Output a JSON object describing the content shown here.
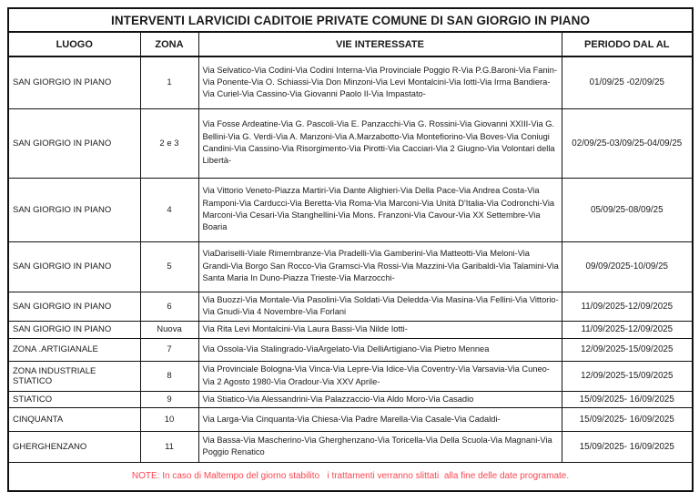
{
  "document": {
    "title": "INTERVENTI LARVICIDI CADITOIE PRIVATE COMUNE DI SAN GIORGIO IN PIANO",
    "note": "NOTE: In caso di Maltempo del giorno stabilito   i trattamenti verranno slittati  alla fine delle date programate.",
    "note_color": "#fa4550",
    "border_color": "#111111",
    "text_color": "#1a1a1a"
  },
  "table": {
    "headers": [
      "LUOGO",
      "ZONA",
      "VIE INTERESSATE",
      "PERIODO DAL AL"
    ],
    "rows": [
      {
        "luogo": "SAN GIORGIO IN PIANO",
        "zona": "1",
        "vie": "Via Selvatico-Via Codini-Via Codini Interna-Via Provinciale Poggio R-Via P.G.Baroni-Via Fanin-Via Ponente-Via O. Schiassi-Via Don Minzoni-Via Levi Montalcini-Via Iotti-Via Irma Bandiera-Via Curiel-Via Cassino-Via Giovanni Paolo II-Via Impastato-",
        "periodo": "01/09/25 -02/09/25"
      },
      {
        "luogo": "SAN GIORGIO IN PIANO",
        "zona": "2 e 3",
        "vie": "Via Fosse Ardeatine-Via G. Pascoli-Via E. Panzacchi-Via G. Rossini-Via Giovanni XXIII-Via G. Bellini-Via G. Verdi-Via A. Manzoni-Via A.Marzabotto-Via Montefiorino-Via Boves-Via Coniugi Candini-Via Cassino-Via Risorgimento-Via Pirotti-Via Cacciari-Via 2 Giugno-Via Volontari della Libertà-",
        "periodo": "02/09/25-03/09/25-04/09/25"
      },
      {
        "luogo": "SAN GIORGIO IN PIANO",
        "zona": "4",
        "vie": "Via Vittorio Veneto-Piazza Martiri-Via Dante Alighieri-Via Della Pace-Via Andrea Costa-Via Ramponi-Via Carducci-Via Beretta-Via Roma-Via Marconi-Via Unità D'Italia-Via Codronchi-Via Marconi-Via Cesari-Via Stanghellini-Via Mons. Franzoni-Via Cavour-Via XX Settembre-Via Boaria",
        "periodo": "05/09/25-08/09/25"
      },
      {
        "luogo": "SAN GIORGIO IN PIANO",
        "zona": "5",
        "vie": "ViaDariselli-Viale Rimembranze-Via Pradelli-Via Gamberini-Via Matteotti-Via Meloni-Via Grandi-Via Borgo San Rocco-Via Gramsci-Via Rossi-Via Mazzini-Via Garibaldi-Via Talamini-Via Santa Maria In Duno-Piazza Trieste-Via Marzocchi-",
        "periodo": "09/09/2025-10/09/25"
      },
      {
        "luogo": "SAN GIORGIO IN PIANO",
        "zona": "6",
        "vie": "Via Buozzi-Via Montale-Via Pasolini-Via Soldati-Via Deledda-Via Masina-Via Fellini-Via Vittorio-Via Gnudi-Via 4 Novembre-Via Forlani",
        "periodo": "11/09/2025-12/09/2025"
      },
      {
        "luogo": "SAN GIORGIO IN PIANO",
        "zona": "Nuova",
        "vie": "Via Rita Levi Montalcini-Via Laura Bassi-Via Nilde Iotti-",
        "periodo": "11/09/2025-12/09/2025"
      },
      {
        "luogo": "ZONA .ARTIGIANALE",
        "zona": "7",
        "vie": "Via Ossola-Via Stalingrado-ViaArgelato-Via DelliArtigiano-Via Pietro Mennea",
        "periodo": "12/09/2025-15/09/2025"
      },
      {
        "luogo": "ZONA INDUSTRIALE STIATICO",
        "zona": "8",
        "vie": "Via Provinciale Bologna-Via Vinca-Via Lepre-Via Idice-Via Coventry-Via Varsavia-Via Cuneo-Via 2 Agosto 1980-Via Oradour-Via XXV Aprile-",
        "periodo": "12/09/2025-15/09/2025"
      },
      {
        "luogo": "STIATICO",
        "zona": "9",
        "vie": "Via Stiatico-Via Alessandrini-Via Palazzaccio-Via Aldo Moro-Via Casadio",
        "periodo": "15/09/2025- 16/09/2025"
      },
      {
        "luogo": "CINQUANTA",
        "zona": "10",
        "vie": "Via Larga-Via Cinquanta-Via Chiesa-Via Padre Marella-Via Casale-Via Cadaldi-",
        "periodo": "15/09/2025- 16/09/2025"
      },
      {
        "luogo": "GHERGHENZANO",
        "zona": "11",
        "vie": "Via Bassa-Via Mascherino-Via Gherghenzano-Via Toricella-Via Della Scuola-Via Magnani-Via Poggio Renatico",
        "periodo": "15/09/2025- 16/09/2025"
      }
    ]
  }
}
